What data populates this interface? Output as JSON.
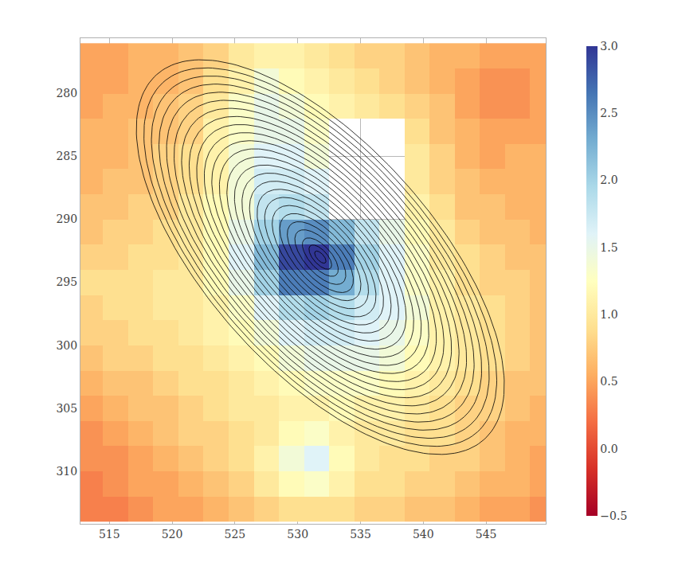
{
  "chart_data": {
    "type": "heatmap",
    "x": [
      513.5,
      515.5,
      517.5,
      519.5,
      521.5,
      523.5,
      525.5,
      527.5,
      529.5,
      531.5,
      533.5,
      535.5,
      537.5,
      539.5,
      541.5,
      543.5,
      545.5,
      547.5,
      549.5
    ],
    "y": [
      277,
      279,
      281,
      283,
      285,
      287,
      289,
      291,
      293,
      295,
      297,
      299,
      301,
      303,
      305,
      307,
      309,
      311,
      313
    ],
    "z": [
      [
        0.5,
        0.5,
        0.6,
        0.6,
        0.7,
        0.8,
        1.0,
        1.1,
        1.1,
        1.0,
        0.9,
        0.8,
        0.8,
        0.7,
        0.6,
        0.6,
        0.5,
        0.5,
        0.5
      ],
      [
        0.5,
        0.5,
        0.6,
        0.6,
        0.7,
        0.9,
        1.1,
        1.4,
        1.2,
        1.1,
        1.0,
        0.9,
        0.8,
        0.7,
        0.6,
        0.5,
        0.4,
        0.4,
        0.5
      ],
      [
        0.5,
        0.6,
        0.6,
        0.7,
        0.8,
        1.0,
        1.3,
        1.5,
        1.4,
        1.2,
        1.1,
        1.0,
        0.9,
        0.8,
        0.7,
        0.5,
        0.4,
        0.4,
        0.5
      ],
      [
        0.6,
        0.6,
        0.7,
        0.7,
        0.8,
        1.1,
        1.3,
        1.5,
        1.5,
        1.3,
        null,
        null,
        null,
        0.9,
        0.7,
        0.6,
        0.5,
        0.5,
        0.5
      ],
      [
        0.6,
        0.6,
        0.7,
        0.8,
        0.9,
        1.1,
        1.4,
        1.6,
        1.6,
        1.4,
        null,
        null,
        null,
        1.0,
        0.8,
        0.6,
        0.5,
        0.6,
        0.6
      ],
      [
        0.6,
        0.7,
        0.7,
        0.8,
        0.9,
        1.1,
        1.4,
        1.7,
        1.7,
        1.6,
        null,
        null,
        null,
        1.0,
        0.8,
        0.7,
        0.6,
        0.6,
        0.6
      ],
      [
        0.7,
        0.7,
        0.8,
        0.8,
        1.0,
        1.2,
        1.4,
        1.8,
        1.9,
        1.8,
        null,
        null,
        null,
        1.1,
        0.9,
        0.7,
        0.7,
        0.6,
        0.6
      ],
      [
        0.7,
        0.8,
        0.8,
        0.9,
        1.0,
        1.2,
        1.5,
        2.0,
        2.4,
        2.5,
        2.2,
        1.8,
        1.5,
        1.2,
        1.0,
        0.8,
        0.7,
        0.7,
        0.6
      ],
      [
        0.8,
        0.8,
        0.9,
        0.9,
        1.0,
        1.2,
        1.6,
        2.2,
        2.9,
        3.0,
        2.6,
        2.0,
        1.6,
        1.3,
        1.0,
        0.9,
        0.8,
        0.7,
        0.7
      ],
      [
        0.9,
        0.9,
        0.9,
        1.0,
        1.0,
        1.2,
        1.5,
        2.0,
        2.6,
        2.6,
        2.3,
        1.9,
        1.6,
        1.3,
        1.1,
        0.9,
        0.8,
        0.8,
        0.7
      ],
      [
        0.8,
        0.9,
        0.9,
        1.0,
        1.0,
        1.1,
        1.3,
        1.6,
        1.9,
        2.0,
        1.9,
        1.7,
        1.6,
        1.4,
        1.1,
        1.0,
        0.9,
        0.8,
        0.7
      ],
      [
        0.8,
        0.8,
        0.9,
        0.9,
        1.0,
        1.1,
        1.2,
        1.4,
        1.6,
        1.7,
        1.7,
        1.6,
        1.5,
        1.3,
        1.1,
        1.0,
        0.9,
        0.8,
        0.7
      ],
      [
        0.7,
        0.8,
        0.8,
        0.9,
        0.9,
        1.0,
        1.1,
        1.2,
        1.4,
        1.5,
        1.5,
        1.5,
        1.4,
        1.2,
        1.1,
        1.0,
        0.9,
        0.8,
        0.7
      ],
      [
        0.6,
        0.7,
        0.7,
        0.8,
        0.9,
        0.9,
        1.0,
        1.1,
        1.2,
        1.3,
        1.3,
        1.3,
        1.2,
        1.1,
        1.0,
        0.9,
        0.8,
        0.7,
        0.7
      ],
      [
        0.5,
        0.6,
        0.7,
        0.7,
        0.8,
        0.9,
        1.0,
        1.0,
        1.1,
        1.1,
        1.2,
        1.1,
        1.1,
        1.0,
        0.9,
        0.8,
        0.8,
        0.7,
        0.6
      ],
      [
        0.4,
        0.5,
        0.6,
        0.7,
        0.8,
        0.8,
        0.9,
        1.0,
        1.2,
        1.3,
        1.1,
        1.0,
        1.0,
        0.9,
        0.9,
        0.8,
        0.7,
        0.6,
        0.6
      ],
      [
        0.4,
        0.4,
        0.5,
        0.6,
        0.7,
        0.8,
        0.9,
        1.1,
        1.4,
        1.6,
        1.2,
        1.0,
        0.9,
        0.9,
        0.8,
        0.8,
        0.7,
        0.6,
        0.5
      ],
      [
        0.3,
        0.4,
        0.5,
        0.5,
        0.6,
        0.7,
        0.8,
        1.0,
        1.2,
        1.3,
        1.1,
        0.9,
        0.9,
        0.8,
        0.8,
        0.7,
        0.6,
        0.6,
        0.5
      ],
      [
        0.3,
        0.3,
        0.4,
        0.5,
        0.5,
        0.6,
        0.7,
        0.8,
        0.9,
        0.9,
        0.9,
        0.8,
        0.8,
        0.7,
        0.7,
        0.6,
        0.5,
        0.5,
        0.4
      ]
    ],
    "zlim": [
      -0.5,
      3.0
    ],
    "colorbar_ticks": [
      {
        "value": -0.5,
        "label": "−0.5"
      },
      {
        "value": 0,
        "label": "0.0"
      },
      {
        "value": 0.5,
        "label": "0.5"
      },
      {
        "value": 1,
        "label": "1.0"
      },
      {
        "value": 1.5,
        "label": "1.5"
      },
      {
        "value": 2,
        "label": "2.0"
      },
      {
        "value": 2.5,
        "label": "2.5"
      },
      {
        "value": 3,
        "label": "3.0"
      }
    ],
    "ellipses": {
      "center": [
        531.8,
        293.0
      ],
      "angle": 48,
      "axis_ratio": 0.46,
      "semi_major": [
        19.5,
        18.7,
        17.9,
        17.1,
        16.3,
        15.5,
        14.7,
        13.9,
        13.1,
        12.3,
        11.5,
        10.7,
        9.9,
        9.1,
        8.3,
        7.5,
        6.7,
        5.9,
        5.1,
        4.3,
        3.5,
        2.7,
        1.9,
        1.2,
        0.6
      ]
    },
    "xlim": [
      512.7,
      549.75
    ],
    "ylim": [
      314.2,
      275.6
    ],
    "xticks": [
      515,
      520,
      525,
      530,
      535,
      540,
      545
    ],
    "yticks": [
      280,
      285,
      290,
      295,
      300,
      305,
      310
    ],
    "grid": true
  }
}
